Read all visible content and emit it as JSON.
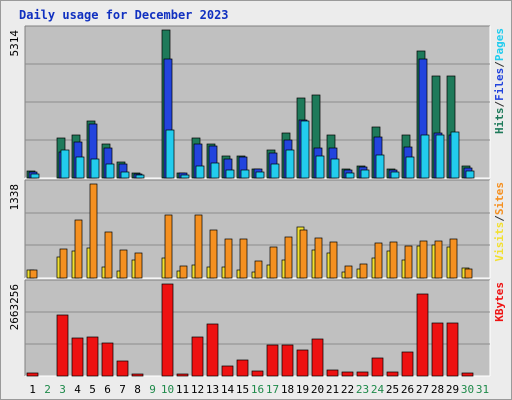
{
  "chart_data": {
    "type": "bar",
    "title": "Daily usage for December 2023",
    "categories": [
      "1",
      "2",
      "3",
      "4",
      "5",
      "6",
      "7",
      "8",
      "9",
      "10",
      "11",
      "12",
      "13",
      "14",
      "15",
      "16",
      "17",
      "18",
      "19",
      "20",
      "21",
      "22",
      "23",
      "24",
      "25",
      "26",
      "27",
      "28",
      "29",
      "30",
      "31"
    ],
    "weekend_days": [
      "2",
      "3",
      "9",
      "10",
      "16",
      "17",
      "23",
      "24",
      "30",
      "31"
    ],
    "colors": {
      "hits": "#1e7a5a",
      "files": "#2244dd",
      "pages": "#22ccee",
      "visits": "#f2e030",
      "sites": "#f59020",
      "kbytes": "#ee1111",
      "plot_bg": "#c0c0c0",
      "weekday_label": "#000000",
      "weekend_label": "#1e8a4a"
    },
    "panels": [
      {
        "id": "hits_files_pages",
        "max_label": "5314",
        "ymax": 5314,
        "legend": [
          {
            "label": "Hits",
            "color": "#1e7a5a"
          },
          {
            "label": "/",
            "color": "#333333"
          },
          {
            "label": "Files",
            "color": "#2244dd"
          },
          {
            "label": "/",
            "color": "#333333"
          },
          {
            "label": "Pages",
            "color": "#22ccee"
          }
        ],
        "series": [
          {
            "name": "Hits",
            "color": "#1e7a5a",
            "values": [
              250,
              0,
              1440,
              1530,
              2060,
              1210,
              570,
              170,
              0,
              5314,
              170,
              1430,
              1210,
              790,
              790,
              340,
              1010,
              1630,
              2870,
              2980,
              1560,
              330,
              420,
              1830,
              330,
              1560,
              4570,
              3650,
              3670,
              420,
              0
            ]
          },
          {
            "name": "Files",
            "color": "#2244dd",
            "values": [
              210,
              0,
              930,
              1300,
              1940,
              1060,
              520,
              160,
              0,
              4290,
              170,
              1230,
              1140,
              680,
              740,
              330,
              890,
              1370,
              2090,
              1070,
              1090,
              270,
              380,
              1470,
              270,
              1120,
              4260,
              1600,
              1560,
              360,
              0
            ]
          },
          {
            "name": "Pages",
            "color": "#22ccee",
            "values": [
              150,
              0,
              1020,
              760,
              680,
              520,
              210,
              110,
              0,
              1740,
              110,
              430,
              540,
              300,
              290,
              200,
              510,
              1010,
              2030,
              790,
              670,
              170,
              270,
              830,
              210,
              750,
              1550,
              1530,
              1640,
              250,
              0
            ]
          }
        ]
      },
      {
        "id": "visits_sites",
        "max_label": "1338",
        "ymax": 1338,
        "legend": [
          {
            "label": "Visits",
            "color": "#f2e030"
          },
          {
            "label": "/",
            "color": "#333333"
          },
          {
            "label": "Sites",
            "color": "#f59020"
          }
        ],
        "series": [
          {
            "name": "Visits",
            "color": "#f2e030",
            "values": [
              110,
              0,
              300,
              380,
              430,
              150,
              100,
              260,
              0,
              280,
              100,
              190,
              160,
              160,
              120,
              90,
              180,
              250,
              720,
              400,
              360,
              90,
              130,
              290,
              380,
              260,
              450,
              470,
              440,
              140,
              0
            ]
          },
          {
            "name": "Sites",
            "color": "#f59020",
            "values": [
              110,
              0,
              410,
              830,
              1338,
              660,
              400,
              350,
              0,
              890,
              170,
              890,
              680,
              560,
              560,
              240,
              440,
              580,
              690,
              570,
              510,
              170,
              200,
              500,
              510,
              450,
              530,
              530,
              560,
              130,
              0
            ]
          }
        ]
      },
      {
        "id": "kbytes",
        "max_label": "2663256",
        "ymax": 2663256,
        "legend": [
          {
            "label": "KBytes",
            "color": "#ee1111"
          }
        ],
        "series": [
          {
            "name": "KBytes",
            "color": "#ee1111",
            "values": [
              90000,
              0,
              1770000,
              1110000,
              1120000,
              960000,
              430000,
              70000,
              0,
              2663256,
              50000,
              1120000,
              1500000,
              290000,
              450000,
              150000,
              910000,
              910000,
              740000,
              1080000,
              160000,
              120000,
              130000,
              520000,
              130000,
              700000,
              2370000,
              1530000,
              1530000,
              90000,
              0
            ]
          }
        ]
      }
    ]
  }
}
